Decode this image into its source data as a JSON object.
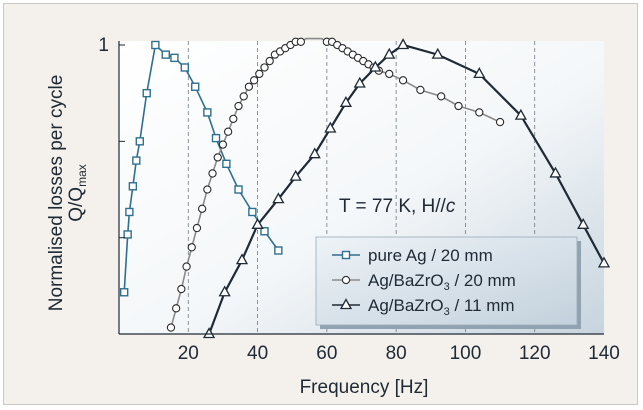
{
  "chart_data": {
    "type": "line",
    "xlabel": "Frequency [Hz]",
    "ylabel_main": "Normalised losses per cycle",
    "ylabel_sub": "Q/Q",
    "ylabel_sub_subscript": "max",
    "xlim": [
      0,
      140
    ],
    "ylim": [
      0.1,
      1.0
    ],
    "x_ticks": [
      20,
      40,
      60,
      80,
      100,
      120,
      140
    ],
    "x_tick_labels": [
      "20",
      "40",
      "60",
      "80",
      "100",
      "120",
      "140"
    ],
    "y_tick_label": "1",
    "y_tick_value": 1.0,
    "grid": "vertical dashed",
    "annotation": {
      "prefix": "T = 77 K, H",
      "symbol": "//",
      "suffix": "c"
    },
    "legend": {
      "placement": "lower-right",
      "entries": [
        {
          "series": 0,
          "text": "pure Ag / 20 mm",
          "sub": "",
          "tail": ""
        },
        {
          "series": 1,
          "text": "Ag/BaZrO",
          "sub": "3",
          "tail": " / 20 mm"
        },
        {
          "series": 2,
          "text": "Ag/BaZrO",
          "sub": "3",
          "tail": " / 11 mm"
        }
      ]
    },
    "series": [
      {
        "marker": "square",
        "color": "#2f6f8f",
        "x": [
          1.5,
          2.5,
          3.0,
          4.0,
          5.0,
          6.0,
          8.0,
          10.5,
          13.5,
          16.0,
          19.0,
          22.0,
          25.5,
          28.0,
          31.0,
          34.5,
          38.5,
          42.0,
          46.0
        ],
        "y": [
          0.23,
          0.41,
          0.48,
          0.56,
          0.64,
          0.7,
          0.85,
          1.0,
          0.97,
          0.96,
          0.93,
          0.87,
          0.79,
          0.71,
          0.63,
          0.55,
          0.48,
          0.42,
          0.36
        ]
      },
      {
        "marker": "circle",
        "color": "#8a8a8a",
        "x": [
          15,
          16.5,
          18,
          19.5,
          21,
          22.5,
          24,
          25.5,
          27,
          28.5,
          30,
          31.5,
          33,
          34.5,
          36,
          37.5,
          39,
          40.5,
          42,
          43.5,
          45,
          46.5,
          48,
          49.5,
          51,
          52.5,
          54,
          55.5,
          57,
          58.5,
          60,
          61.5,
          63,
          64.5,
          66,
          67.5,
          69,
          70.5,
          72,
          73.5,
          75,
          78,
          82,
          87,
          93,
          98,
          104,
          110
        ],
        "y": [
          0.12,
          0.18,
          0.24,
          0.31,
          0.37,
          0.43,
          0.49,
          0.55,
          0.6,
          0.65,
          0.69,
          0.73,
          0.77,
          0.81,
          0.84,
          0.87,
          0.89,
          0.91,
          0.93,
          0.95,
          0.97,
          0.98,
          0.99,
          1.0,
          1.01,
          1.01,
          1.02,
          1.02,
          1.02,
          1.02,
          1.01,
          1.01,
          1.0,
          0.99,
          0.98,
          0.97,
          0.96,
          0.95,
          0.94,
          0.93,
          0.92,
          0.91,
          0.89,
          0.86,
          0.84,
          0.81,
          0.79,
          0.76
        ]
      },
      {
        "marker": "triangle",
        "color": "#1f2a35",
        "x": [
          26.0,
          30.5,
          35.5,
          40.0,
          46.0,
          51.0,
          56.5,
          61.0,
          65.5,
          69.5,
          74.0,
          78.0,
          82.0,
          92.0,
          104.0,
          116.0,
          126.0,
          134.0,
          140.0
        ],
        "y": [
          0.1,
          0.23,
          0.33,
          0.44,
          0.52,
          0.59,
          0.66,
          0.74,
          0.82,
          0.88,
          0.93,
          0.97,
          1.0,
          0.97,
          0.91,
          0.78,
          0.6,
          0.44,
          0.32
        ]
      }
    ]
  }
}
